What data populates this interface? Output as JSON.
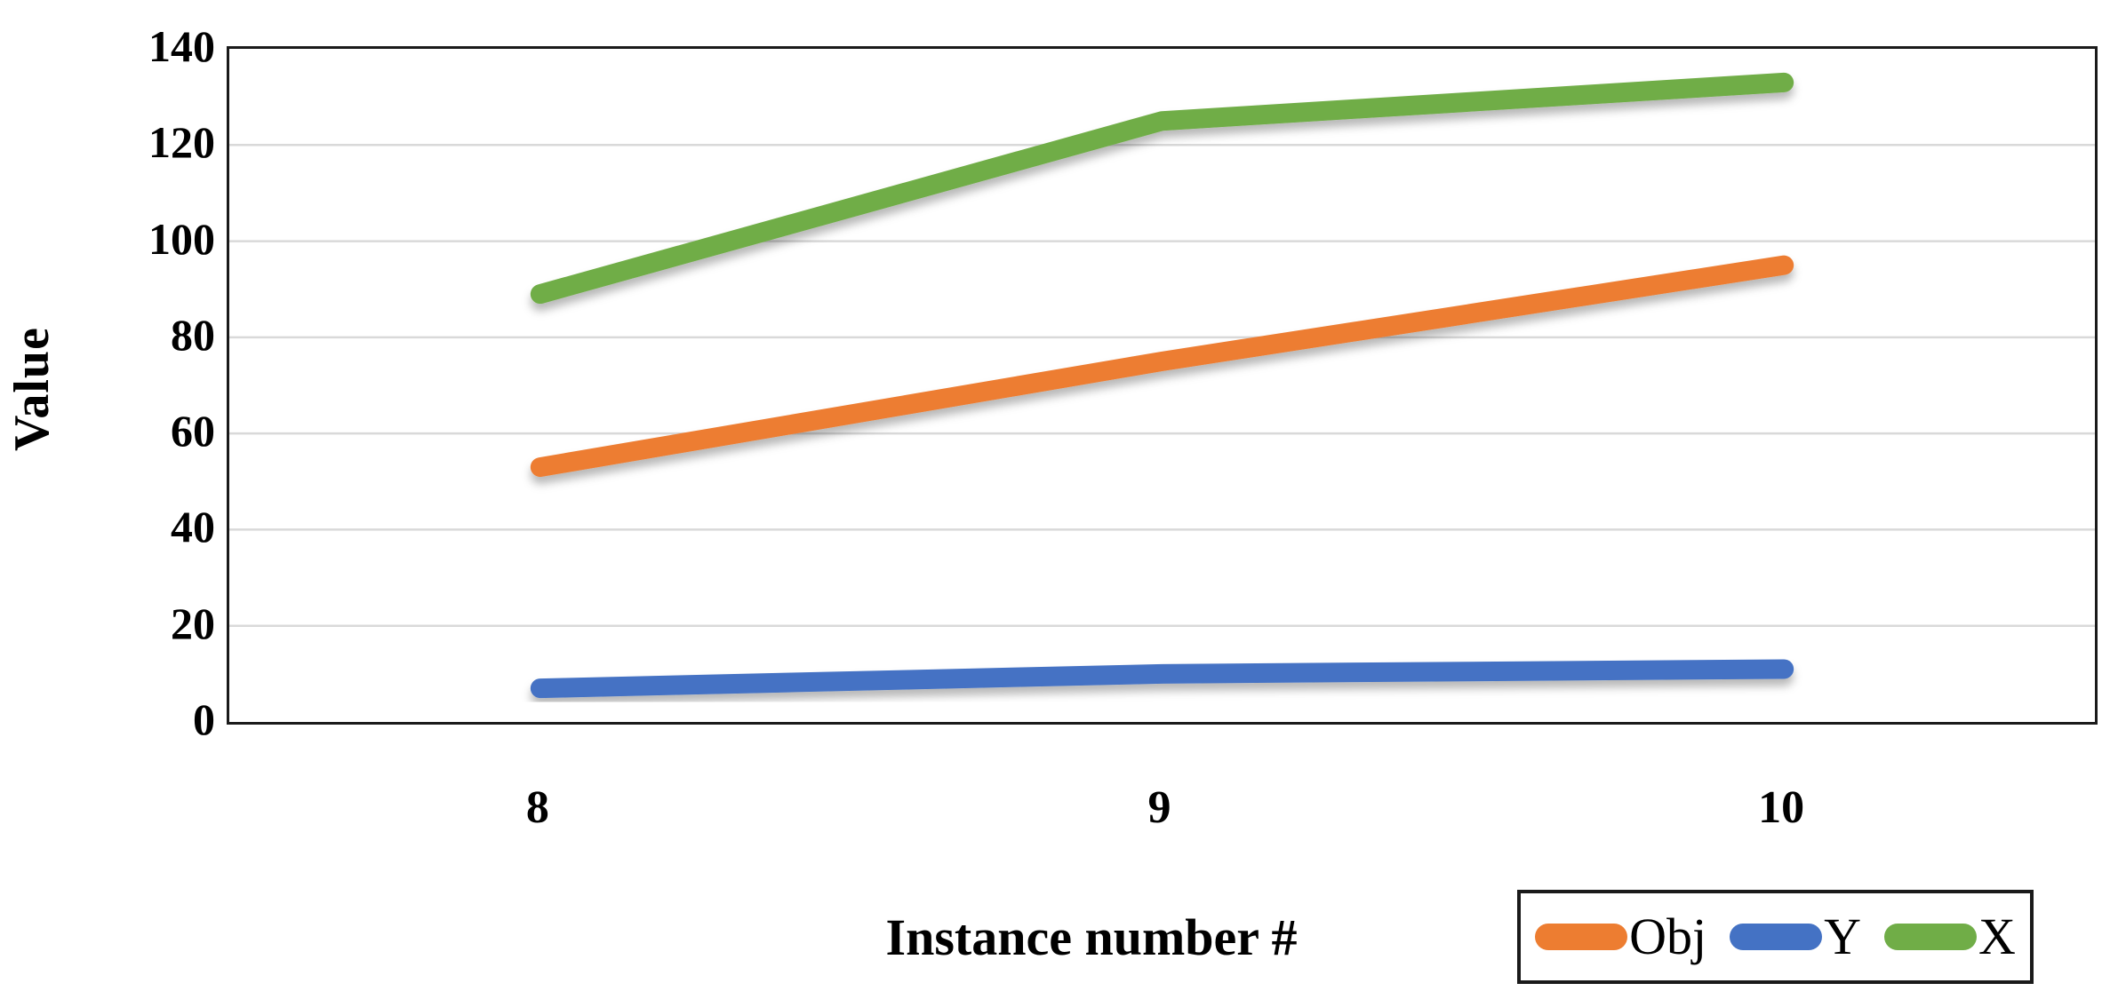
{
  "figure": {
    "background": "#ffffff",
    "border_color": "#1a1a1a",
    "grid_color": "#d9d9d9",
    "text_color": "#000000"
  },
  "chart_data": {
    "type": "line",
    "categories": [
      "8",
      "9",
      "10"
    ],
    "series": [
      {
        "name": "Obj",
        "color": "#ED7D31",
        "values": [
          53,
          75,
          95
        ]
      },
      {
        "name": "Y",
        "color": "#4472C4",
        "values": [
          7,
          10,
          11
        ]
      },
      {
        "name": "X",
        "color": "#70AD47",
        "values": [
          89,
          125,
          133
        ]
      }
    ],
    "title": "",
    "xlabel": "Instance number #",
    "ylabel": "Value",
    "ylim": [
      0,
      140
    ],
    "yticks": [
      0,
      20,
      40,
      60,
      80,
      100,
      120,
      140
    ],
    "grid": "horizontal",
    "legend_position": "bottom-right",
    "line_width": 22
  }
}
